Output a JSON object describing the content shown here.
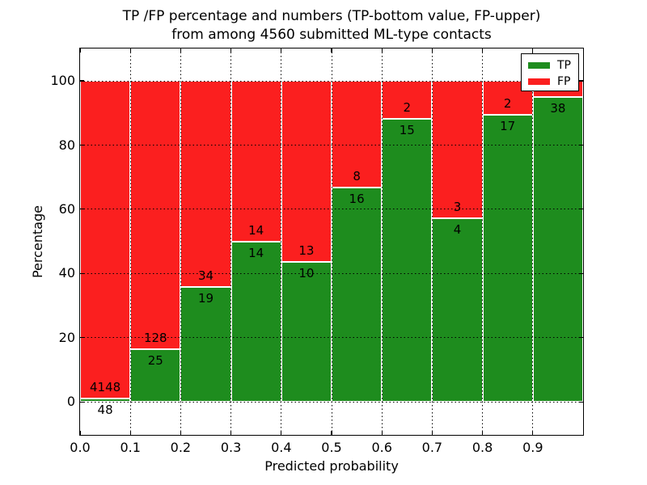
{
  "chart_data": {
    "type": "bar",
    "stacked": true,
    "title_line1": "TP /FP percentage and numbers (TP-bottom value, FP-upper)",
    "title_line2": "from among 4560 submitted ML-type contacts",
    "xlabel": "Predicted probability",
    "ylabel": "Percentage",
    "total_contacts": 4560,
    "bins": [
      "0.0-0.1",
      "0.1-0.2",
      "0.2-0.3",
      "0.3-0.4",
      "0.4-0.5",
      "0.5-0.6",
      "0.6-0.7",
      "0.7-0.8",
      "0.8-0.9",
      "0.9-1.0"
    ],
    "xticklabels": [
      "0.0",
      "0.1",
      "0.2",
      "0.3",
      "0.4",
      "0.5",
      "0.6",
      "0.7",
      "0.8",
      "0.9"
    ],
    "yticks": [
      0,
      20,
      40,
      60,
      80,
      100
    ],
    "xlim": [
      0.0,
      1.0
    ],
    "ylim": [
      -10.3,
      110.1
    ],
    "grid": true,
    "series": [
      {
        "name": "TP",
        "color": "#1e8c1e",
        "counts": [
          48,
          25,
          19,
          14,
          10,
          16,
          15,
          4,
          17,
          38
        ],
        "percentages": [
          1.14,
          16.34,
          35.85,
          50.0,
          43.48,
          66.67,
          88.24,
          57.14,
          89.47,
          95.0
        ]
      },
      {
        "name": "FP",
        "color": "#fb1f1f",
        "counts": [
          4148,
          128,
          34,
          14,
          13,
          8,
          2,
          3,
          2,
          2
        ],
        "percentages": [
          98.86,
          83.66,
          64.15,
          50.0,
          56.52,
          33.33,
          11.76,
          42.86,
          10.53,
          5.0
        ]
      }
    ],
    "bar_labels": {
      "tp": [
        "48",
        "25",
        "19",
        "14",
        "10",
        "16",
        "15",
        "4",
        "17",
        "38"
      ],
      "fp": [
        "4148",
        "128",
        "34",
        "14",
        "13",
        "8",
        "2",
        "3",
        "2",
        ""
      ],
      "fp_last_label_hidden_by_legend": true
    },
    "legend": {
      "position": "upper right",
      "labels": [
        "TP",
        "FP"
      ]
    }
  }
}
